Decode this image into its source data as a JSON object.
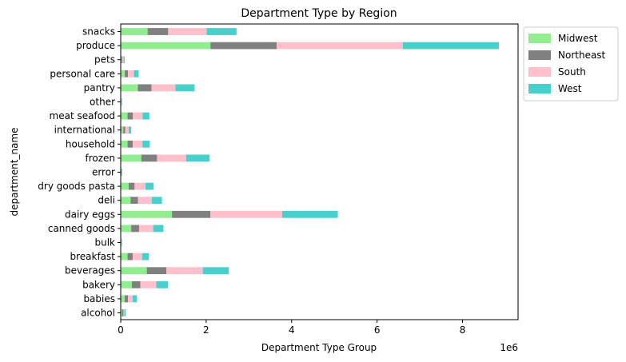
{
  "chart_data": {
    "type": "bar",
    "orientation": "horizontal",
    "stacked": true,
    "title": "Department Type by Region",
    "xlabel": "Department Type Group",
    "ylabel": "department_name",
    "x_scale_label": "1e6",
    "xlim": [
      0,
      9300000
    ],
    "x_ticks": [
      0,
      2000000,
      4000000,
      6000000,
      8000000
    ],
    "x_tick_labels": [
      "0",
      "2",
      "4",
      "6",
      "8"
    ],
    "grid": false,
    "legend_position": "outside-top-right",
    "categories": [
      "alcohol",
      "babies",
      "bakery",
      "beverages",
      "breakfast",
      "bulk",
      "canned goods",
      "dairy eggs",
      "deli",
      "dry goods pasta",
      "error",
      "frozen",
      "household",
      "international",
      "meat seafood",
      "other",
      "pantry",
      "personal care",
      "pets",
      "produce",
      "snacks"
    ],
    "series": [
      {
        "name": "Midwest",
        "color": "#90ee90",
        "values": [
          35000,
          95000,
          260000,
          610000,
          160000,
          8000,
          245000,
          1200000,
          230000,
          185000,
          9000,
          480000,
          160000,
          60000,
          160000,
          8000,
          400000,
          95000,
          22000,
          2100000,
          630000
        ]
      },
      {
        "name": "Northeast",
        "color": "#808080",
        "values": [
          30000,
          75000,
          200000,
          460000,
          120000,
          6000,
          185000,
          900000,
          175000,
          140000,
          7000,
          370000,
          120000,
          45000,
          125000,
          6000,
          320000,
          75000,
          17000,
          1550000,
          480000
        ]
      },
      {
        "name": "South",
        "color": "#ffc0cb",
        "values": [
          25000,
          110000,
          370000,
          850000,
          220000,
          10000,
          330000,
          1680000,
          320000,
          255000,
          12000,
          680000,
          230000,
          80000,
          225000,
          10000,
          560000,
          140000,
          30000,
          2950000,
          900000
        ]
      },
      {
        "name": "West",
        "color": "#48d1cc",
        "values": [
          30000,
          100000,
          280000,
          610000,
          160000,
          8000,
          240000,
          1300000,
          240000,
          190000,
          9000,
          550000,
          170000,
          60000,
          160000,
          8000,
          450000,
          110000,
          23000,
          2250000,
          700000
        ]
      }
    ]
  }
}
